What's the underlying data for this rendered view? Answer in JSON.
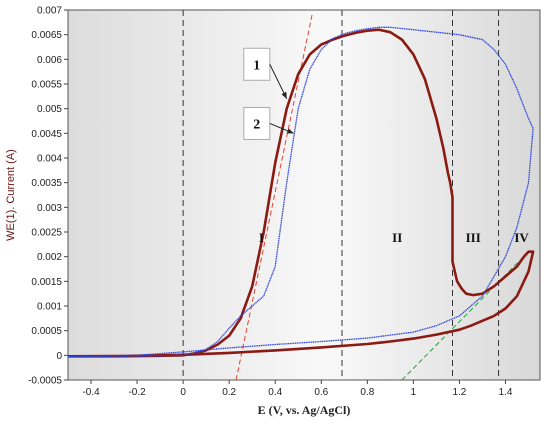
{
  "chart_data": {
    "type": "line",
    "title": "",
    "xlabel": "E (V, vs. Ag/AgCl)",
    "ylabel": "WE(1). Current (A)",
    "xlim": [
      -0.5,
      1.55
    ],
    "ylim": [
      -0.0005,
      0.007
    ],
    "xticks": [
      -0.4,
      -0.2,
      0,
      0.2,
      0.4,
      0.6,
      0.8,
      1,
      1.2,
      1.4
    ],
    "xtick_labels": [
      "-0.4",
      "-0.2",
      "0",
      "0.2",
      "0.4",
      "0.6",
      "0.8",
      "1",
      "1.2",
      "1.4"
    ],
    "yticks": [
      -0.0005,
      0,
      0.0005,
      0.001,
      0.0015,
      0.002,
      0.0025,
      0.003,
      0.0035,
      0.004,
      0.0045,
      0.005,
      0.0055,
      0.006,
      0.0065,
      0.007
    ],
    "ytick_labels": [
      "-0.0005",
      "0",
      "0.0005",
      "0.001",
      "0.0015",
      "0.002",
      "0.0025",
      "0.003",
      "0.0035",
      "0.004",
      "0.0045",
      "0.005",
      "0.0055",
      "0.006",
      "0.0065",
      "0.007"
    ],
    "grid": false,
    "region_boundaries": [
      0,
      0.69,
      1.17,
      1.37
    ],
    "region_labels": [
      {
        "text": "I",
        "x": 0.34,
        "y": 0.0023
      },
      {
        "text": "II",
        "x": 0.93,
        "y": 0.0023
      },
      {
        "text": "III",
        "x": 1.26,
        "y": 0.0023
      },
      {
        "text": "IV",
        "x": 1.47,
        "y": 0.0023
      }
    ],
    "callouts": [
      {
        "text": "1",
        "label_x": 0.32,
        "label_y": 0.0059,
        "target_x": 0.45,
        "target_y": 0.0052
      },
      {
        "text": "2",
        "label_x": 0.32,
        "label_y": 0.0047,
        "target_x": 0.48,
        "target_y": 0.0045
      }
    ],
    "tangent_lines": [
      {
        "color": "#e8412d",
        "x": [
          0.23,
          0.56
        ],
        "y": [
          -0.0005,
          0.0069
        ]
      },
      {
        "color": "#22a33a",
        "x": [
          0.95,
          1.5
        ],
        "y": [
          -0.0005,
          0.0021
        ]
      }
    ],
    "series": [
      {
        "color": "#8b1a12",
        "x": [
          -0.5,
          -0.3,
          -0.1,
          0.0,
          0.05,
          0.1,
          0.15,
          0.2,
          0.25,
          0.3,
          0.35,
          0.4,
          0.45,
          0.5,
          0.55,
          0.6,
          0.65,
          0.7,
          0.75,
          0.8,
          0.85,
          0.9,
          0.95,
          1.0,
          1.05,
          1.1,
          1.13,
          1.15,
          1.16,
          1.17,
          1.17,
          1.18,
          1.19,
          1.21,
          1.23,
          1.26,
          1.3,
          1.35,
          1.4,
          1.45,
          1.48,
          1.5,
          1.52,
          1.5,
          1.45,
          1.4,
          1.35,
          1.3,
          1.25,
          1.2,
          1.1,
          1.0,
          0.9,
          0.8,
          0.6,
          0.4,
          0.2,
          0.0,
          -0.2,
          -0.5
        ],
        "y": [
          -2e-05,
          -2e-05,
          -1e-05,
          0.0,
          4e-05,
          0.0001,
          0.00022,
          0.0004,
          0.00075,
          0.0014,
          0.0025,
          0.0039,
          0.005,
          0.0057,
          0.0061,
          0.0063,
          0.0064,
          0.00648,
          0.00654,
          0.00658,
          0.0066,
          0.00655,
          0.0064,
          0.0061,
          0.0056,
          0.0048,
          0.0042,
          0.0037,
          0.0035,
          0.0032,
          0.0019,
          0.0017,
          0.0015,
          0.00135,
          0.00125,
          0.00122,
          0.00125,
          0.0014,
          0.0016,
          0.0018,
          0.002,
          0.0021,
          0.0021,
          0.0017,
          0.0012,
          0.00095,
          0.0008,
          0.0007,
          0.0006,
          0.00052,
          0.00042,
          0.00034,
          0.00028,
          0.00023,
          0.00016,
          0.0001,
          5e-05,
          1e-05,
          -1e-05,
          -2e-05
        ]
      },
      {
        "color": "#2a3fd6",
        "x": [
          -0.5,
          -0.3,
          -0.1,
          0.0,
          0.05,
          0.1,
          0.15,
          0.2,
          0.25,
          0.3,
          0.35,
          0.4,
          0.45,
          0.5,
          0.55,
          0.6,
          0.65,
          0.7,
          0.75,
          0.8,
          0.85,
          0.9,
          1.0,
          1.1,
          1.2,
          1.3,
          1.35,
          1.4,
          1.45,
          1.5,
          1.52,
          1.5,
          1.45,
          1.4,
          1.35,
          1.3,
          1.2,
          1.1,
          1.0,
          0.8,
          0.6,
          0.4,
          0.2,
          0.0,
          -0.2,
          -0.5
        ],
        "y": [
          -2e-05,
          -2e-05,
          -1e-05,
          0.0,
          4e-05,
          0.00012,
          0.00028,
          0.00055,
          0.0008,
          0.001,
          0.0012,
          0.0018,
          0.0035,
          0.005,
          0.0058,
          0.0062,
          0.00642,
          0.00652,
          0.00658,
          0.00662,
          0.00665,
          0.00665,
          0.0066,
          0.00655,
          0.0065,
          0.0064,
          0.0062,
          0.0059,
          0.0054,
          0.0048,
          0.0046,
          0.0035,
          0.0026,
          0.002,
          0.0016,
          0.0012,
          0.0008,
          0.0006,
          0.00047,
          0.00035,
          0.00028,
          0.00022,
          0.00015,
          7e-05,
          0.0,
          -2e-05
        ]
      }
    ]
  }
}
